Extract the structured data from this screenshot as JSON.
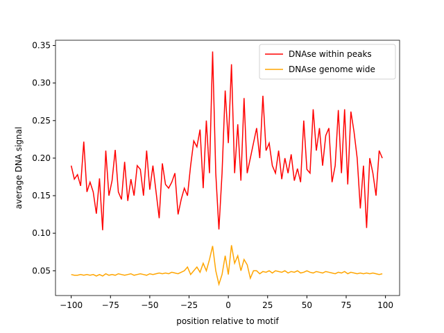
{
  "chart_data": {
    "type": "line",
    "xlabel": "position relative to motif",
    "ylabel": "average DNA signal",
    "x": [
      -100,
      -98,
      -96,
      -94,
      -92,
      -90,
      -88,
      -86,
      -84,
      -82,
      -80,
      -78,
      -76,
      -74,
      -72,
      -70,
      -68,
      -66,
      -64,
      -62,
      -60,
      -58,
      -56,
      -54,
      -52,
      -50,
      -48,
      -46,
      -44,
      -42,
      -40,
      -38,
      -36,
      -34,
      -32,
      -30,
      -28,
      -26,
      -24,
      -22,
      -20,
      -18,
      -16,
      -14,
      -12,
      -10,
      -8,
      -6,
      -4,
      -2,
      0,
      2,
      4,
      6,
      8,
      10,
      12,
      14,
      16,
      18,
      20,
      22,
      24,
      26,
      28,
      30,
      32,
      34,
      36,
      38,
      40,
      42,
      44,
      46,
      48,
      50,
      52,
      54,
      56,
      58,
      60,
      62,
      64,
      66,
      68,
      70,
      72,
      74,
      76,
      78,
      80,
      82,
      84,
      86,
      88,
      90,
      92,
      94,
      96,
      98
    ],
    "series": [
      {
        "name": "DNAse within peaks",
        "color": "#ff0000",
        "values": [
          0.19,
          0.172,
          0.178,
          0.163,
          0.222,
          0.155,
          0.168,
          0.155,
          0.126,
          0.173,
          0.104,
          0.21,
          0.15,
          0.17,
          0.211,
          0.155,
          0.145,
          0.195,
          0.143,
          0.172,
          0.15,
          0.19,
          0.185,
          0.15,
          0.21,
          0.158,
          0.19,
          0.155,
          0.12,
          0.193,
          0.165,
          0.16,
          0.168,
          0.18,
          0.125,
          0.145,
          0.16,
          0.15,
          0.19,
          0.223,
          0.215,
          0.238,
          0.16,
          0.25,
          0.18,
          0.342,
          0.18,
          0.105,
          0.18,
          0.29,
          0.22,
          0.325,
          0.18,
          0.245,
          0.17,
          0.28,
          0.18,
          0.2,
          0.22,
          0.24,
          0.2,
          0.283,
          0.21,
          0.22,
          0.19,
          0.18,
          0.21,
          0.172,
          0.2,
          0.18,
          0.205,
          0.17,
          0.186,
          0.168,
          0.25,
          0.185,
          0.18,
          0.265,
          0.21,
          0.24,
          0.19,
          0.23,
          0.24,
          0.168,
          0.19,
          0.264,
          0.18,
          0.265,
          0.165,
          0.262,
          0.235,
          0.2,
          0.133,
          0.19,
          0.107,
          0.2,
          0.18,
          0.15,
          0.21,
          0.2
        ]
      },
      {
        "name": "DNAse genome wide",
        "color": "#ffa500",
        "values": [
          0.045,
          0.044,
          0.044,
          0.045,
          0.044,
          0.045,
          0.044,
          0.045,
          0.043,
          0.045,
          0.043,
          0.046,
          0.044,
          0.045,
          0.044,
          0.046,
          0.045,
          0.044,
          0.045,
          0.046,
          0.044,
          0.045,
          0.046,
          0.045,
          0.044,
          0.046,
          0.045,
          0.046,
          0.047,
          0.046,
          0.047,
          0.046,
          0.048,
          0.047,
          0.046,
          0.048,
          0.05,
          0.055,
          0.045,
          0.05,
          0.055,
          0.048,
          0.06,
          0.05,
          0.065,
          0.083,
          0.05,
          0.032,
          0.045,
          0.07,
          0.045,
          0.084,
          0.06,
          0.07,
          0.05,
          0.065,
          0.058,
          0.04,
          0.05,
          0.05,
          0.046,
          0.049,
          0.048,
          0.05,
          0.047,
          0.05,
          0.049,
          0.048,
          0.05,
          0.047,
          0.049,
          0.048,
          0.05,
          0.047,
          0.048,
          0.05,
          0.048,
          0.047,
          0.049,
          0.048,
          0.047,
          0.049,
          0.048,
          0.047,
          0.046,
          0.048,
          0.047,
          0.049,
          0.046,
          0.048,
          0.047,
          0.046,
          0.047,
          0.046,
          0.047,
          0.046,
          0.047,
          0.046,
          0.045,
          0.046
        ]
      }
    ],
    "xlim": [
      -110,
      109
    ],
    "ylim": [
      0.017,
      0.357
    ],
    "xticks": [
      {
        "value": -100,
        "label": "−100"
      },
      {
        "value": -75,
        "label": "−75"
      },
      {
        "value": -50,
        "label": "−50"
      },
      {
        "value": -25,
        "label": "−25"
      },
      0,
      25,
      50,
      75,
      100
    ],
    "yticks": [
      0.05,
      {
        "value": 0.1,
        "label": "0.10"
      },
      0.15,
      {
        "value": 0.2,
        "label": "0.20"
      },
      0.25,
      {
        "value": 0.3,
        "label": "0.30"
      },
      0.35
    ],
    "legend": "upper right"
  }
}
